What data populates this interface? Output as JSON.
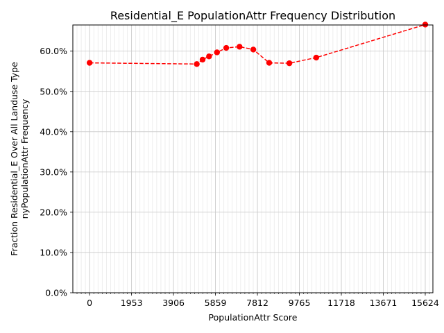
{
  "chart_data": {
    "type": "line",
    "title": "Residential_E PopulationAttr Frequency Distribution",
    "xlabel": "PopulationAttr Score",
    "ylabel": [
      "Fraction Residential_E Over All Landuse Type",
      "nyPopulationAttr Frequency"
    ],
    "xlim": [
      -780,
      15980
    ],
    "ylim": [
      0,
      0.665
    ],
    "x_ticks": [
      0,
      1953,
      3906,
      5859,
      7812,
      9765,
      11718,
      13671,
      15624
    ],
    "x_tick_labels": [
      "0",
      "1953",
      "3906",
      "5859",
      "7812",
      "9765",
      "11718",
      "13671",
      "15624"
    ],
    "y_ticks": [
      0,
      0.1,
      0.2,
      0.3,
      0.4,
      0.5,
      0.6
    ],
    "y_tick_labels": [
      "0.0%",
      "10.0%",
      "20.0%",
      "30.0%",
      "40.0%",
      "50.0%",
      "60.0%"
    ],
    "grid": true,
    "series": [
      {
        "color": "#ff0000",
        "line_style": "dashed",
        "marker": "circle",
        "x": [
          0,
          4990,
          5260,
          5560,
          5930,
          6360,
          6980,
          7620,
          8360,
          9300,
          10550,
          15624
        ],
        "y": [
          0.571,
          0.568,
          0.579,
          0.587,
          0.597,
          0.608,
          0.611,
          0.604,
          0.571,
          0.57,
          0.584,
          0.666
        ]
      }
    ]
  }
}
